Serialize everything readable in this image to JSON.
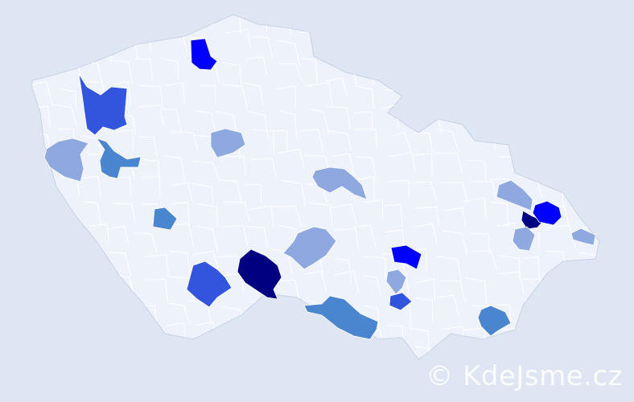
{
  "map": {
    "base_fill": "#eef2fa",
    "border_color": "#c8d2e6",
    "background": "#dde6f2",
    "palette": {
      "lightest": "#8fa8e0",
      "light": "#4a86d0",
      "medium": "#3355dd",
      "strong": "#0000ff",
      "darkest": "#000080"
    },
    "highlighted_districts": [
      {
        "level": "strong"
      },
      {
        "level": "medium"
      },
      {
        "level": "lightest"
      },
      {
        "level": "light"
      },
      {
        "level": "lightest"
      },
      {
        "level": "light"
      },
      {
        "level": "lightest"
      },
      {
        "level": "lightest"
      },
      {
        "level": "darkest"
      },
      {
        "level": "medium"
      },
      {
        "level": "light"
      },
      {
        "level": "strong"
      },
      {
        "level": "lightest"
      },
      {
        "level": "medium"
      },
      {
        "level": "light"
      },
      {
        "level": "lightest"
      },
      {
        "level": "darkest"
      },
      {
        "level": "strong"
      },
      {
        "level": "lightest"
      },
      {
        "level": "lightest"
      }
    ]
  },
  "watermark": "© KdeJsme.cz"
}
